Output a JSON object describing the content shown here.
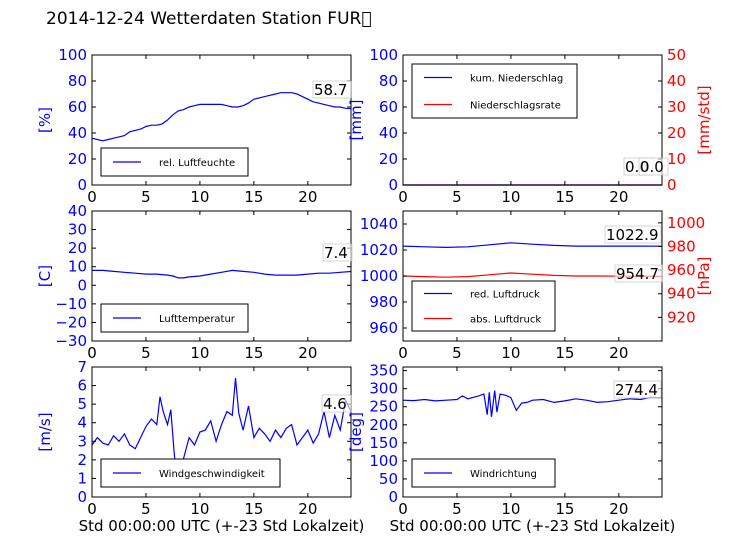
{
  "figure": {
    "title": "2014-12-24 Wetterdaten Station FUR\u0000",
    "x_label": "Std 00:00:00 UTC (+-23 Std Lokalzeit)"
  },
  "colors": {
    "primary": "#0000ff",
    "secondary": "#ff0000",
    "axis": "#000000"
  },
  "chart_data": [
    {
      "type": "line",
      "panel": "humidity",
      "ylabel": "[%]",
      "xlim": [
        0,
        24
      ],
      "ylim": [
        0,
        100
      ],
      "xticks": [
        "0",
        "5",
        "10",
        "15",
        "20"
      ],
      "yticks": [
        "0",
        "20",
        "40",
        "60",
        "80",
        "100"
      ],
      "legend": "bottom-left",
      "series": [
        {
          "name": "rel. Luftfeuchte",
          "color": "#0000ff",
          "x": [
            0,
            0.5,
            1,
            1.5,
            2,
            2.5,
            3,
            3.5,
            4,
            4.5,
            5,
            5.5,
            6,
            6.5,
            7,
            7.5,
            8,
            8.5,
            9,
            9.5,
            10,
            10.5,
            11,
            11.5,
            12,
            12.5,
            13,
            13.5,
            14,
            14.5,
            15,
            15.5,
            16,
            16.5,
            17,
            17.5,
            18,
            18.5,
            19,
            19.5,
            20,
            20.5,
            21,
            21.5,
            22,
            22.5,
            23,
            23.5,
            24
          ],
          "y": [
            36,
            35,
            34,
            35,
            36,
            37,
            38,
            41,
            42,
            43,
            45,
            46,
            46,
            47,
            50,
            54,
            57,
            58,
            60,
            61,
            62,
            62,
            62,
            62,
            62,
            61,
            60,
            60,
            61,
            63,
            66,
            67,
            68,
            69,
            70,
            71,
            71,
            71,
            70,
            68,
            66,
            64,
            63,
            62,
            61,
            60,
            60,
            59,
            58.7
          ]
        }
      ],
      "annotations": [
        "58.7"
      ]
    },
    {
      "type": "line",
      "panel": "precipitation",
      "ylabel": "[mm]",
      "ylabel_right": "[mm/std]",
      "xlim": [
        0,
        24
      ],
      "ylim": [
        0,
        100
      ],
      "ylim_right": [
        0,
        50
      ],
      "xticks": [
        "0",
        "5",
        "10",
        "15",
        "20"
      ],
      "yticks": [
        "0",
        "20",
        "40",
        "60",
        "80",
        "100"
      ],
      "yticks_right": [
        "0",
        "10",
        "20",
        "30",
        "40",
        "50"
      ],
      "legend": "top-left",
      "series": [
        {
          "name": "kum. Niederschlag",
          "color": "#0000ff",
          "x": [
            0,
            24
          ],
          "y": [
            0,
            0
          ]
        },
        {
          "name": "Niederschlagsrate",
          "color": "#ff0000",
          "x": [
            0,
            24
          ],
          "y": [
            0,
            0
          ],
          "axis": "right"
        }
      ],
      "annotations": [
        "0.0",
        "0.0"
      ]
    },
    {
      "type": "line",
      "panel": "temperature",
      "ylabel": "[C]",
      "xlim": [
        0,
        24
      ],
      "ylim": [
        -30,
        40
      ],
      "xticks": [
        "0",
        "5",
        "10",
        "15",
        "20"
      ],
      "yticks": [
        "−30",
        "−20",
        "−10",
        "0",
        "10",
        "20",
        "30",
        "40"
      ],
      "legend": "bottom-left",
      "series": [
        {
          "name": "Lufttemperatur",
          "color": "#0000ff",
          "x": [
            0,
            1,
            2,
            3,
            4,
            5,
            6,
            7,
            7.5,
            8,
            8.5,
            9,
            10,
            11,
            12,
            13,
            14,
            15,
            16,
            17,
            18,
            19,
            20,
            21,
            22,
            23,
            24
          ],
          "y": [
            8,
            8,
            7.5,
            7,
            6.5,
            6,
            6,
            5.5,
            5,
            4,
            4,
            4.5,
            5,
            6,
            7,
            8,
            7.5,
            7,
            6,
            5.5,
            5.5,
            5.5,
            6,
            6.5,
            6.5,
            7,
            7.4
          ]
        }
      ],
      "annotations": [
        "7.4"
      ]
    },
    {
      "type": "line",
      "panel": "pressure",
      "ylabel_right": "[hPa]",
      "xlim": [
        0,
        24
      ],
      "ylim": [
        950,
        1050
      ],
      "ylim_right": [
        900,
        1010
      ],
      "xticks": [
        "0",
        "5",
        "10",
        "15",
        "20"
      ],
      "yticks": [
        "960",
        "980",
        "1000",
        "1020",
        "1040"
      ],
      "yticks_right": [
        "920",
        "940",
        "960",
        "980",
        "1000"
      ],
      "legend": "bottom-left",
      "series": [
        {
          "name": "red. Luftdruck",
          "color": "#0000ff",
          "x": [
            0,
            2,
            4,
            6,
            8,
            10,
            12,
            14,
            16,
            18,
            20,
            22,
            24
          ],
          "y": [
            1023,
            1022.5,
            1022,
            1022.5,
            1024,
            1025.5,
            1024.5,
            1023.5,
            1023,
            1023,
            1023,
            1023,
            1022.9
          ]
        },
        {
          "name": "abs. Luftdruck",
          "color": "#ff0000",
          "axis": "right",
          "x": [
            0,
            2,
            4,
            6,
            8,
            10,
            12,
            14,
            16,
            18,
            20,
            22,
            24
          ],
          "y": [
            955,
            954.5,
            954,
            954.5,
            956,
            957.5,
            956.5,
            955.5,
            955,
            955,
            954.8,
            954.7,
            954.7
          ]
        }
      ],
      "annotations": [
        "1022.9",
        "954.7"
      ]
    },
    {
      "type": "line",
      "panel": "wind_speed",
      "ylabel": "[m/s]",
      "xlim": [
        0,
        24
      ],
      "ylim": [
        0,
        7
      ],
      "xticks": [
        "0",
        "5",
        "10",
        "15",
        "20"
      ],
      "yticks": [
        "0",
        "1",
        "2",
        "3",
        "4",
        "5",
        "6",
        "7"
      ],
      "legend": "bottom-left",
      "series": [
        {
          "name": "Windgeschwindigkeit",
          "color": "#0000ff",
          "x": [
            0,
            0.5,
            1,
            1.5,
            2,
            2.5,
            3,
            3.5,
            4,
            4.5,
            5,
            5.5,
            6,
            6.3,
            6.6,
            7,
            7.3,
            7.6,
            7.9,
            8.2,
            8.5,
            9,
            9.5,
            10,
            10.5,
            11,
            11.5,
            12,
            12.5,
            13,
            13.3,
            13.6,
            14,
            14.5,
            15,
            15.5,
            16,
            16.5,
            17,
            17.5,
            18,
            18.5,
            19,
            19.5,
            20,
            20.5,
            21,
            21.5,
            22,
            22.5,
            23,
            23.5,
            24
          ],
          "y": [
            2.8,
            3.2,
            2.9,
            2.8,
            3.3,
            3.0,
            3.4,
            2.8,
            2.6,
            3.2,
            3.8,
            4.2,
            3.9,
            5.4,
            4.6,
            3.9,
            4.7,
            2.5,
            0.6,
            1.2,
            2.1,
            3.2,
            2.8,
            3.5,
            3.6,
            4.1,
            3.0,
            3.9,
            4.6,
            4.4,
            6.4,
            4.5,
            3.6,
            4.9,
            3.2,
            3.7,
            3.4,
            3.0,
            3.6,
            3.2,
            3.7,
            3.9,
            2.8,
            3.2,
            3.6,
            2.9,
            3.4,
            4.6,
            3.2,
            4.4,
            3.6,
            5.2,
            4.6
          ]
        }
      ],
      "annotations": [
        "4.6"
      ]
    },
    {
      "type": "line",
      "panel": "wind_direction",
      "ylabel": "[deg]",
      "xlim": [
        0,
        24
      ],
      "ylim": [
        0,
        360
      ],
      "xticks": [
        "0",
        "5",
        "10",
        "15",
        "20"
      ],
      "yticks": [
        "0",
        "50",
        "100",
        "150",
        "200",
        "250",
        "300",
        "350"
      ],
      "legend": "bottom-left",
      "series": [
        {
          "name": "Windrichtung",
          "color": "#0000ff",
          "x": [
            0,
            1,
            2,
            3,
            4,
            5,
            5.5,
            6,
            7,
            7.5,
            7.8,
            8,
            8.2,
            8.5,
            8.7,
            9,
            9.5,
            10,
            10.5,
            11,
            11.5,
            12,
            13,
            14,
            15,
            16,
            17,
            18,
            19,
            20,
            21,
            22,
            23,
            24
          ],
          "y": [
            268,
            267,
            270,
            266,
            268,
            270,
            280,
            272,
            280,
            285,
            228,
            290,
            222,
            295,
            235,
            285,
            282,
            275,
            240,
            260,
            262,
            268,
            270,
            262,
            266,
            272,
            268,
            262,
            264,
            268,
            272,
            270,
            276,
            274.4
          ]
        }
      ],
      "annotations": [
        "274.4"
      ]
    }
  ]
}
